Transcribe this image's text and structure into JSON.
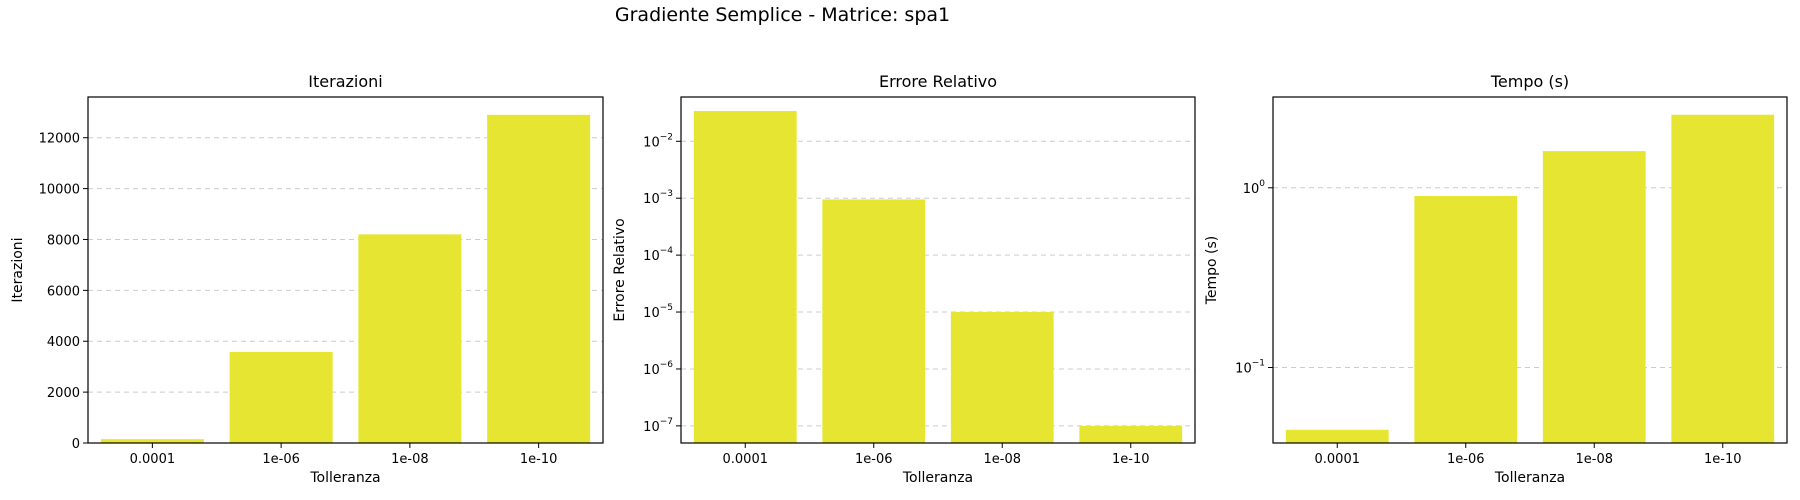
{
  "figure": {
    "suptitle": "Gradiente Semplice - Matrice: spa1",
    "bar_color": "#e6e632",
    "grid_color": "#cccccc"
  },
  "chart_data": [
    {
      "type": "bar",
      "title": "Iterazioni",
      "xlabel": "Tolleranza",
      "ylabel": "Iterazioni",
      "categories": [
        "0.0001",
        "1e-06",
        "1e-08",
        "1e-10"
      ],
      "values": [
        150,
        3580,
        8200,
        12900
      ],
      "yscale": "linear",
      "ylim": [
        0,
        13600
      ],
      "yticks": [
        0,
        2000,
        4000,
        6000,
        8000,
        10000,
        12000
      ],
      "ytick_labels": [
        "0",
        "2000",
        "4000",
        "6000",
        "8000",
        "10000",
        "12000"
      ],
      "grid": "y-dashed"
    },
    {
      "type": "bar",
      "title": "Errore Relativo",
      "xlabel": "Tolleranza",
      "ylabel": "Errore Relativo",
      "categories": [
        "0.0001",
        "1e-06",
        "1e-08",
        "1e-10"
      ],
      "values": [
        0.034,
        0.00095,
        1e-05,
        1e-07
      ],
      "yscale": "log",
      "ylim": [
        5e-08,
        0.06
      ],
      "yticks": [
        1e-07,
        1e-06,
        1e-05,
        0.0001,
        0.001,
        0.01
      ],
      "ytick_labels": [
        [
          "10",
          "−7"
        ],
        [
          "10",
          "−6"
        ],
        [
          "10",
          "−5"
        ],
        [
          "10",
          "−4"
        ],
        [
          "10",
          "−3"
        ],
        [
          "10",
          "−2"
        ]
      ],
      "grid": "y-dashed"
    },
    {
      "type": "bar",
      "title": "Tempo (s)",
      "xlabel": "Tolleranza",
      "ylabel": "Tempo (s)",
      "categories": [
        "0.0001",
        "1e-06",
        "1e-08",
        "1e-10"
      ],
      "values": [
        0.045,
        0.9,
        1.6,
        2.55
      ],
      "yscale": "log",
      "ylim": [
        0.038,
        3.2
      ],
      "yticks": [
        0.1,
        1
      ],
      "ytick_labels": [
        [
          "10",
          "−1"
        ],
        [
          "10",
          "0"
        ]
      ],
      "grid": "y-dashed"
    }
  ]
}
